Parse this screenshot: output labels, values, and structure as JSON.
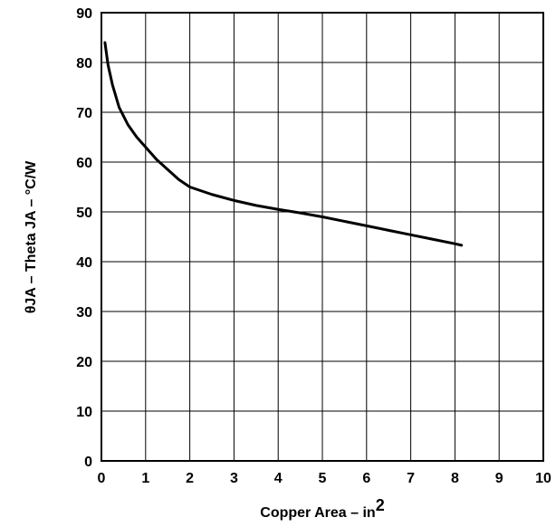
{
  "chart_data": {
    "type": "line",
    "xlabel": "Copper Area – in",
    "xlabel_superscript": "2",
    "ylabel": "θJA   – Theta JA – °C/W",
    "xlim": [
      0,
      10
    ],
    "ylim": [
      0,
      90
    ],
    "x_ticks": [
      "0",
      "1",
      "2",
      "3",
      "4",
      "5",
      "6",
      "7",
      "8",
      "9",
      "10"
    ],
    "y_ticks": [
      "0",
      "10",
      "20",
      "30",
      "40",
      "50",
      "60",
      "70",
      "80",
      "90"
    ],
    "grid": true,
    "series": [
      {
        "x": [
          0.08,
          0.15,
          0.25,
          0.4,
          0.6,
          0.8,
          1.0,
          1.25,
          1.5,
          1.75,
          2.0,
          2.5,
          3.0,
          3.5,
          4.0,
          4.5,
          5.0,
          5.5,
          6.0,
          6.5,
          7.0,
          7.5,
          8.0,
          8.15
        ],
        "y": [
          84,
          79.5,
          75.5,
          71,
          67.5,
          65,
          63,
          60.5,
          58.5,
          56.5,
          55,
          53.5,
          52.3,
          51.3,
          50.5,
          49.8,
          49,
          48.1,
          47.2,
          46.3,
          45.4,
          44.5,
          43.6,
          43.3
        ]
      }
    ]
  }
}
